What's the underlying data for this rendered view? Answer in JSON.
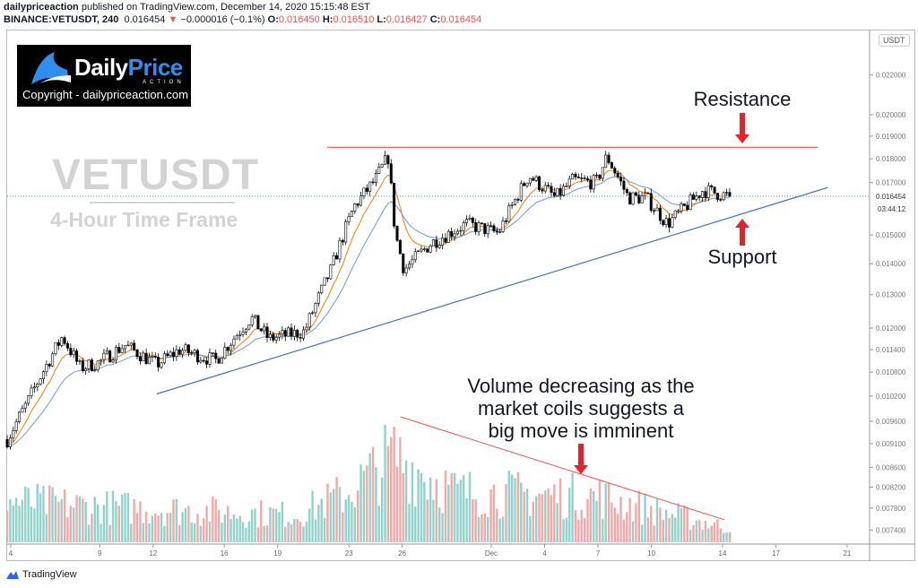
{
  "header": {
    "publisher": "dailypriceaction",
    "published_text": "published on TradingView.com, December 14, 2020 15:15:48 EST",
    "symbol": "BINANCE:VETUSDT, 240",
    "last": "0.016454",
    "change": "−0.000016 (−0.1%)",
    "o_label": "O:",
    "o": "0.016450",
    "h_label": "H:",
    "h": "0.016510",
    "l_label": "L:",
    "l": "0.016427",
    "c_label": "C:",
    "c": "0.016454"
  },
  "logo": {
    "name_a": "Daily",
    "name_b": "Price",
    "sub": "ACTION",
    "copyright": "Copyright - dailypriceaction.com"
  },
  "watermark": {
    "symbol": "VETUSDT",
    "timeframe": "4-Hour Time Frame"
  },
  "annotations": {
    "resistance": "Resistance",
    "support": "Support",
    "volume_note": [
      "Volume decreasing as the",
      "market coils suggests a",
      "big move is imminent"
    ]
  },
  "axis": {
    "currency": "USDT",
    "countdown": "03:44:12",
    "last_price_label": "0.016454"
  },
  "footer": {
    "brand": "TradingView"
  },
  "colors": {
    "up_volume": "#8fd3cb",
    "down_volume": "#f4a7a7",
    "ema_fast": "#f57c00",
    "ema_slow": "#6b9bd1",
    "resistance": "#ef5350",
    "support": "#4a72b8",
    "arrow": "#e8202a"
  },
  "chart_data": {
    "type": "candlestick",
    "title": "BINANCE:VETUSDT, 240",
    "scale": "log",
    "ylim": [
      0.0072,
      0.0232
    ],
    "price_ticks": [
      "0.022000",
      "0.020000",
      "0.019000",
      "0.018000",
      "0.017000",
      "0.015000",
      "0.014000",
      "0.013000",
      "0.012000",
      "0.011400",
      "0.010800",
      "0.010200",
      "0.009600",
      "0.009100",
      "0.008600",
      "0.008200",
      "0.007800",
      "0.007400"
    ],
    "date_ticks": [
      {
        "label": "4",
        "day": 0
      },
      {
        "label": "9",
        "day": 5
      },
      {
        "label": "12",
        "day": 8
      },
      {
        "label": "16",
        "day": 12
      },
      {
        "label": "19",
        "day": 15
      },
      {
        "label": "23",
        "day": 19
      },
      {
        "label": "26",
        "day": 22
      },
      {
        "label": "Dec",
        "day": 27
      },
      {
        "label": "4",
        "day": 30
      },
      {
        "label": "7",
        "day": 33
      },
      {
        "label": "10",
        "day": 36
      },
      {
        "label": "14",
        "day": 40
      },
      {
        "label": "17",
        "day": 43
      },
      {
        "label": "21",
        "day": 47
      }
    ],
    "price_path": [
      {
        "day": -0.2,
        "p": 0.00919
      },
      {
        "day": 0.9,
        "p": 0.01002
      },
      {
        "day": 2.9,
        "p": 0.01176
      },
      {
        "day": 3.9,
        "p": 0.01091
      },
      {
        "day": 4.9,
        "p": 0.01104
      },
      {
        "day": 6.4,
        "p": 0.01152
      },
      {
        "day": 8.2,
        "p": 0.011
      },
      {
        "day": 9.5,
        "p": 0.0114
      },
      {
        "day": 11.5,
        "p": 0.0111
      },
      {
        "day": 13.5,
        "p": 0.0123
      },
      {
        "day": 14.5,
        "p": 0.0117
      },
      {
        "day": 16.5,
        "p": 0.0119
      },
      {
        "day": 18.0,
        "p": 0.0138
      },
      {
        "day": 19.3,
        "p": 0.01606
      },
      {
        "day": 20.5,
        "p": 0.01713
      },
      {
        "day": 21.2,
        "p": 0.01808
      },
      {
        "day": 21.6,
        "p": 0.01506
      },
      {
        "day": 22.1,
        "p": 0.0138
      },
      {
        "day": 23.6,
        "p": 0.0147
      },
      {
        "day": 25.6,
        "p": 0.0154
      },
      {
        "day": 27.4,
        "p": 0.01506
      },
      {
        "day": 29.1,
        "p": 0.0173
      },
      {
        "day": 30.6,
        "p": 0.0164
      },
      {
        "day": 31.6,
        "p": 0.0171
      },
      {
        "day": 32.9,
        "p": 0.017
      },
      {
        "day": 33.5,
        "p": 0.0181
      },
      {
        "day": 34.7,
        "p": 0.0164
      },
      {
        "day": 35.7,
        "p": 0.0164
      },
      {
        "day": 36.9,
        "p": 0.0154
      },
      {
        "day": 37.7,
        "p": 0.0159
      },
      {
        "day": 38.9,
        "p": 0.0167
      },
      {
        "day": 40.4,
        "p": 0.016454
      }
    ],
    "volume_envelope": [
      {
        "day": 0,
        "v": 0.45
      },
      {
        "day": 4,
        "v": 0.4
      },
      {
        "day": 10,
        "v": 0.35
      },
      {
        "day": 16,
        "v": 0.3
      },
      {
        "day": 19,
        "v": 0.55
      },
      {
        "day": 21.5,
        "v": 0.95
      },
      {
        "day": 25,
        "v": 0.55
      },
      {
        "day": 33,
        "v": 0.5
      },
      {
        "day": 40.5,
        "v": 0.15
      }
    ],
    "resistance_level": 0.0185,
    "support_line": [
      {
        "day": 8.2,
        "p": 0.01025
      },
      {
        "day": 45.9,
        "p": 0.0168
      }
    ],
    "volume_trend_line": [
      {
        "day": 21.9,
        "v": 1.0
      },
      {
        "day": 40.1,
        "v": 0.18
      }
    ]
  }
}
